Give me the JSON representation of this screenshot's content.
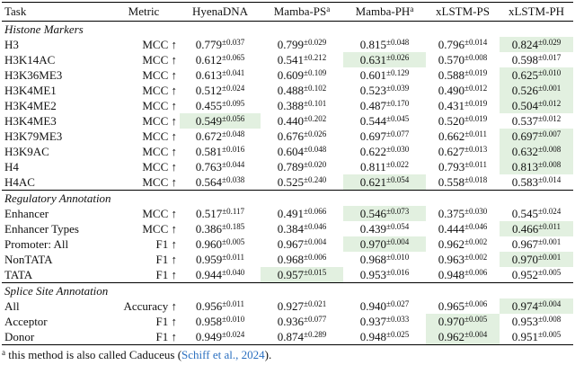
{
  "columns": [
    {
      "text": "Task"
    },
    {
      "text": "Metric"
    },
    {
      "text": "HyenaDNA"
    },
    {
      "text": "Mamba-PS",
      "sup": "a"
    },
    {
      "text": "Mamba-PH",
      "sup": "a"
    },
    {
      "text": "xLSTM-PS"
    },
    {
      "text": "xLSTM-PH"
    }
  ],
  "sections": [
    {
      "title": "Histone Markers",
      "rows": [
        {
          "task": "H3",
          "metric": "MCC ↑",
          "cells": [
            [
              "0.779",
              "±0.037"
            ],
            [
              "0.799",
              "±0.029"
            ],
            [
              "0.815",
              "±0.048"
            ],
            [
              "0.796",
              "±0.014"
            ],
            [
              "0.824",
              "±0.029"
            ]
          ],
          "best": 4
        },
        {
          "task": "H3K14AC",
          "metric": "MCC ↑",
          "cells": [
            [
              "0.612",
              "±0.065"
            ],
            [
              "0.541",
              "±0.212"
            ],
            [
              "0.631",
              "±0.026"
            ],
            [
              "0.570",
              "±0.008"
            ],
            [
              "0.598",
              "±0.017"
            ]
          ],
          "best": 2
        },
        {
          "task": "H3K36ME3",
          "metric": "MCC ↑",
          "cells": [
            [
              "0.613",
              "±0.041"
            ],
            [
              "0.609",
              "±0.109"
            ],
            [
              "0.601",
              "±0.129"
            ],
            [
              "0.588",
              "±0.019"
            ],
            [
              "0.625",
              "±0.010"
            ]
          ],
          "best": 4
        },
        {
          "task": "H3K4ME1",
          "metric": "MCC ↑",
          "cells": [
            [
              "0.512",
              "±0.024"
            ],
            [
              "0.488",
              "±0.102"
            ],
            [
              "0.523",
              "±0.039"
            ],
            [
              "0.490",
              "±0.012"
            ],
            [
              "0.526",
              "±0.001"
            ]
          ],
          "best": 4
        },
        {
          "task": "H3K4ME2",
          "metric": "MCC ↑",
          "cells": [
            [
              "0.455",
              "±0.095"
            ],
            [
              "0.388",
              "±0.101"
            ],
            [
              "0.487",
              "±0.170"
            ],
            [
              "0.431",
              "±0.019"
            ],
            [
              "0.504",
              "±0.012"
            ]
          ],
          "best": 4
        },
        {
          "task": "H3K4ME3",
          "metric": "MCC ↑",
          "cells": [
            [
              "0.549",
              "±0.056"
            ],
            [
              "0.440",
              "±0.202"
            ],
            [
              "0.544",
              "±0.045"
            ],
            [
              "0.520",
              "±0.019"
            ],
            [
              "0.537",
              "±0.012"
            ]
          ],
          "best": 0
        },
        {
          "task": "H3K79ME3",
          "metric": "MCC ↑",
          "cells": [
            [
              "0.672",
              "±0.048"
            ],
            [
              "0.676",
              "±0.026"
            ],
            [
              "0.697",
              "±0.077"
            ],
            [
              "0.662",
              "±0.011"
            ],
            [
              "0.697",
              "±0.007"
            ]
          ],
          "best": 4
        },
        {
          "task": "H3K9AC",
          "metric": "MCC ↑",
          "cells": [
            [
              "0.581",
              "±0.016"
            ],
            [
              "0.604",
              "±0.048"
            ],
            [
              "0.622",
              "±0.030"
            ],
            [
              "0.627",
              "±0.013"
            ],
            [
              "0.632",
              "±0.008"
            ]
          ],
          "best": 4
        },
        {
          "task": "H4",
          "metric": "MCC ↑",
          "cells": [
            [
              "0.763",
              "±0.044"
            ],
            [
              "0.789",
              "±0.020"
            ],
            [
              "0.811",
              "±0.022"
            ],
            [
              "0.793",
              "±0.011"
            ],
            [
              "0.813",
              "±0.008"
            ]
          ],
          "best": 4
        },
        {
          "task": "H4AC",
          "metric": "MCC ↑",
          "cells": [
            [
              "0.564",
              "±0.038"
            ],
            [
              "0.525",
              "±0.240"
            ],
            [
              "0.621",
              "±0.054"
            ],
            [
              "0.558",
              "±0.018"
            ],
            [
              "0.583",
              "±0.014"
            ]
          ],
          "best": 2
        }
      ]
    },
    {
      "title": "Regulatory Annotation",
      "rows": [
        {
          "task": "Enhancer",
          "metric": "MCC ↑",
          "cells": [
            [
              "0.517",
              "±0.117"
            ],
            [
              "0.491",
              "±0.066"
            ],
            [
              "0.546",
              "±0.073"
            ],
            [
              "0.375",
              "±0.030"
            ],
            [
              "0.545",
              "±0.024"
            ]
          ],
          "best": 2
        },
        {
          "task": "Enhancer Types",
          "metric": "MCC ↑",
          "cells": [
            [
              "0.386",
              "±0.185"
            ],
            [
              "0.384",
              "±0.046"
            ],
            [
              "0.439",
              "±0.054"
            ],
            [
              "0.444",
              "±0.046"
            ],
            [
              "0.466",
              "±0.011"
            ]
          ],
          "best": 4
        },
        {
          "task": "Promoter: All",
          "metric": "F1 ↑",
          "cells": [
            [
              "0.960",
              "±0.005"
            ],
            [
              "0.967",
              "±0.004"
            ],
            [
              "0.970",
              "±0.004"
            ],
            [
              "0.962",
              "±0.002"
            ],
            [
              "0.967",
              "±0.001"
            ]
          ],
          "best": 2
        },
        {
          "task": "NonTATA",
          "metric": "F1 ↑",
          "cells": [
            [
              "0.959",
              "±0.011"
            ],
            [
              "0.968",
              "±0.006"
            ],
            [
              "0.968",
              "±0.010"
            ],
            [
              "0.963",
              "±0.002"
            ],
            [
              "0.970",
              "±0.001"
            ]
          ],
          "best": 4
        },
        {
          "task": "TATA",
          "metric": "F1 ↑",
          "cells": [
            [
              "0.944",
              "±0.040"
            ],
            [
              "0.957",
              "±0.015"
            ],
            [
              "0.953",
              "±0.016"
            ],
            [
              "0.948",
              "±0.006"
            ],
            [
              "0.952",
              "±0.005"
            ]
          ],
          "best": 1
        }
      ]
    },
    {
      "title": "Splice Site Annotation",
      "rows": [
        {
          "task": "All",
          "metric": "Accuracy ↑",
          "cells": [
            [
              "0.956",
              "±0.011"
            ],
            [
              "0.927",
              "±0.021"
            ],
            [
              "0.940",
              "±0.027"
            ],
            [
              "0.965",
              "±0.006"
            ],
            [
              "0.974",
              "±0.004"
            ]
          ],
          "best": 4
        },
        {
          "task": "Acceptor",
          "metric": "F1 ↑",
          "cells": [
            [
              "0.958",
              "±0.010"
            ],
            [
              "0.936",
              "±0.077"
            ],
            [
              "0.937",
              "±0.033"
            ],
            [
              "0.970",
              "±0.005"
            ],
            [
              "0.953",
              "±0.008"
            ]
          ],
          "best": 3
        },
        {
          "task": "Donor",
          "metric": "F1 ↑",
          "cells": [
            [
              "0.949",
              "±0.024"
            ],
            [
              "0.874",
              "±0.289"
            ],
            [
              "0.948",
              "±0.025"
            ],
            [
              "0.962",
              "±0.004"
            ],
            [
              "0.951",
              "±0.005"
            ]
          ],
          "best": 3
        }
      ]
    }
  ],
  "footnote": {
    "marker": "a",
    "text": "this method is also called Caduceus (",
    "link": "Schiff et al., 2024",
    "end": ")."
  }
}
